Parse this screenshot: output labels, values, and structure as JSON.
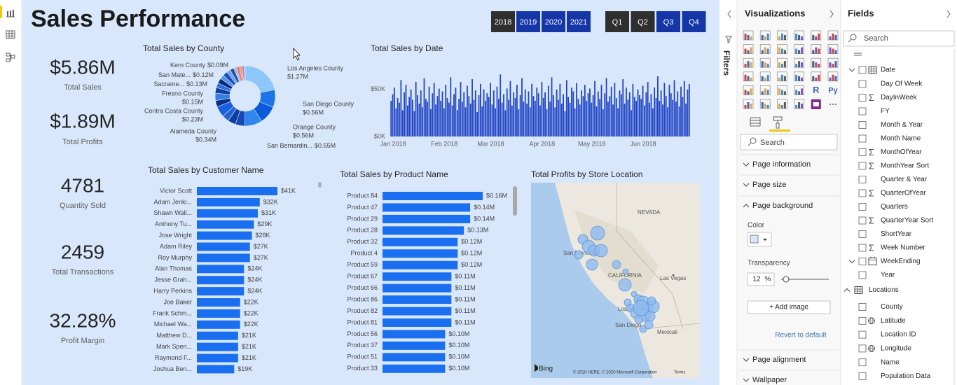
{
  "report": {
    "title": "Sales Performance",
    "years": [
      "2018",
      "2019",
      "2020",
      "2021"
    ],
    "quarters": [
      "Q1",
      "Q2",
      "Q3",
      "Q4"
    ],
    "cards": [
      {
        "value": "$5.86M",
        "label": "Total Sales"
      },
      {
        "value": "$1.89M",
        "label": "Total Profits"
      },
      {
        "value": "4781",
        "label": "Quantity Sold"
      },
      {
        "value": "2459",
        "label": "Total Transactions"
      },
      {
        "value": "32.28%",
        "label": "Profit Margin"
      }
    ],
    "county_chart": {
      "type": "donut",
      "title": "Total Sales by County",
      "categories": [
        "Los Angeles County",
        "San Diego County",
        "Orange County",
        "San Bernardin...",
        null,
        null,
        null,
        "Alameda County",
        null,
        "Contra Costa County",
        null,
        "Fresno County",
        null,
        "Sacrame...",
        null,
        "San Mate...",
        null,
        "Kern County",
        null,
        null,
        null,
        null
      ],
      "values": [
        1.27,
        0.56,
        0.56,
        0.55,
        0.3,
        0.25,
        0.22,
        0.34,
        0.2,
        0.23,
        0.18,
        0.15,
        0.16,
        0.13,
        0.15,
        0.12,
        0.12,
        0.09,
        0.1,
        0.08,
        0.06,
        0.04
      ],
      "value_labels": [
        "$1.27M",
        "$0.56M",
        "$0.56M",
        "$0.55M",
        null,
        null,
        null,
        "$0.34M",
        null,
        "$0.23M",
        null,
        "$0.15M",
        null,
        "$0.13M",
        null,
        "$0.12M",
        null,
        "$0.09M",
        null,
        null,
        null,
        null
      ],
      "colors": [
        "#8cc6fa",
        "#1d73e8",
        "#0d5ad8",
        "#2f86f0",
        "#1648b8",
        "#0e3c9e",
        "#2563d0",
        "#1a5fe0",
        "#0b2f86",
        "#3a7de6",
        "#123f9c",
        "#2a6fe4",
        "#0a2a78",
        "#4f8fef",
        "#1c4fb4",
        "#6aa4f2",
        "#274a9a",
        "#9fb9e8",
        "#e07a7a",
        "#f0a35a",
        "#c86ad0",
        "#7fd0f0"
      ]
    },
    "date_chart": {
      "type": "bar",
      "title": "Total Sales by Date",
      "color": "#2145c4",
      "values": [
        38,
        45,
        52,
        30,
        41,
        36,
        60,
        28,
        47,
        55,
        33,
        42,
        50,
        39,
        27,
        58,
        44,
        35,
        49,
        31,
        62,
        40,
        37,
        53,
        29,
        46,
        57,
        34,
        43,
        51,
        38,
        48,
        30,
        55,
        41,
        36,
        63,
        33,
        45,
        52,
        28,
        40,
        58,
        37,
        47,
        31,
        54,
        43,
        35,
        61,
        39,
        49,
        26,
        44,
        56,
        32,
        50,
        38,
        46,
        42,
        57,
        34,
        49,
        30,
        53,
        40,
        66,
        36,
        45,
        28,
        51,
        39,
        59,
        33,
        47,
        41,
        55,
        29,
        44,
        62,
        37,
        50,
        35,
        48,
        31,
        56,
        43,
        38,
        52,
        46,
        33,
        58,
        41,
        47,
        29,
        54,
        37,
        63,
        44,
        31,
        50,
        39,
        56,
        35,
        45,
        27,
        60,
        42,
        36,
        52,
        48,
        30,
        57,
        40,
        34,
        49,
        43,
        55,
        38,
        46,
        51,
        36,
        44,
        59,
        32,
        48,
        40,
        55,
        29,
        46,
        62,
        37,
        43,
        53,
        34,
        57,
        41,
        30,
        49,
        45,
        61,
        35,
        52,
        39,
        47,
        28,
        56,
        42,
        38,
        50,
        44,
        40,
        54,
        33,
        47,
        58,
        36,
        45,
        30,
        52,
        41,
        64,
        38,
        49,
        34,
        57,
        43,
        31,
        55,
        46,
        39,
        60,
        37,
        48,
        32,
        53,
        42,
        59,
        35,
        50,
        56
      ],
      "xlim": [
        0,
        181
      ],
      "xticks": [
        {
          "value": 0,
          "label": "Jan 2018"
        },
        {
          "value": 31,
          "label": "Feb 2018"
        },
        {
          "value": 59,
          "label": "Mar 2018"
        },
        {
          "value": 90,
          "label": "Apr 2018"
        },
        {
          "value": 120,
          "label": "May 2018"
        },
        {
          "value": 151,
          "label": "Jun 2018"
        }
      ],
      "ylim": [
        0,
        70
      ],
      "yticks": [
        {
          "value": 0,
          "label": "$0K"
        },
        {
          "value": 50,
          "label": "$50K"
        }
      ]
    },
    "customer_chart": {
      "type": "bar",
      "orientation": "horizontal",
      "title": "Total Sales by Customer Name",
      "color": "#1a6ff0",
      "categories": [
        "Victor Scott",
        "Adam Jenki...",
        "Shawn Wall...",
        "Anthony Tu...",
        "Jose Wright",
        "Adam Riley",
        "Roy Murphy",
        "Alan Thomas",
        "Jesse Grah...",
        "Harry Perkins",
        "Joe Baker",
        "Frank Schm...",
        "Michael Wa...",
        "Matthew D...",
        "Mark Spen...",
        "Raymond F...",
        "Joshua Ben..."
      ],
      "values": [
        41,
        32,
        31,
        29,
        28,
        27,
        27,
        24,
        24,
        24,
        22,
        22,
        22,
        21,
        21,
        21,
        19
      ],
      "value_labels": [
        "$41K",
        "$32K",
        "$31K",
        "$29K",
        "$28K",
        "$27K",
        "$27K",
        "$24K",
        "$24K",
        "$24K",
        "$22K",
        "$22K",
        "$22K",
        "$21K",
        "$21K",
        "$21K",
        "$19K"
      ]
    },
    "product_chart": {
      "type": "bar",
      "orientation": "horizontal",
      "title": "Total Sales by Product Name",
      "color": "#1a6ff0",
      "categories": [
        "Product 84",
        "Product 47",
        "Product 29",
        "Product 28",
        "Product 32",
        "Product 4",
        "Product 59",
        "Product 67",
        "Product 66",
        "Product 86",
        "Product 82",
        "Product 81",
        "Product 56",
        "Product 37",
        "Product 51",
        "Product 33"
      ],
      "values": [
        0.16,
        0.14,
        0.14,
        0.13,
        0.12,
        0.12,
        0.12,
        0.11,
        0.11,
        0.11,
        0.11,
        0.11,
        0.1,
        0.1,
        0.1,
        0.1
      ],
      "value_labels": [
        "$0.16M",
        "$0.14M",
        "$0.14M",
        "$0.13M",
        "$0.12M",
        "$0.12M",
        "$0.12M",
        "$0.11M",
        "$0.11M",
        "$0.11M",
        "$0.11M",
        "$0.11M",
        "$0.10M",
        "$0.10M",
        "$0.10M",
        "$0.10M"
      ]
    },
    "map": {
      "title": "Total Profits by Store Location",
      "labels": [
        "NEVADA",
        "San Francisco",
        "CALIFORNIA",
        "Las Vegas",
        "Los Angeles",
        "San Diego",
        "Mexicali"
      ],
      "logo": "Bing",
      "attribution": "© 2020 HERE, © 2020 Microsoft Corporation",
      "terms": "Terms"
    }
  },
  "filters_pane": {
    "title": "Filters"
  },
  "visualizations_pane": {
    "title": "Visualizations",
    "icon_labels": [
      "R",
      "Py"
    ],
    "search": "Search",
    "sections": [
      "Page information",
      "Page size",
      "Page background",
      "Page alignment",
      "Wallpaper"
    ],
    "color_label": "Color",
    "transparency_label": "Transparency",
    "transparency_value": "12",
    "transparency_unit": "%",
    "add_image": "+ Add image",
    "revert": "Revert to default"
  },
  "fields_pane": {
    "title": "Fields",
    "search": "Search",
    "tables": [
      {
        "name": "Date",
        "items": [
          {
            "name": "Day Of Week"
          },
          {
            "name": "DayInWeek",
            "kind": "sum"
          },
          {
            "name": "FY"
          },
          {
            "name": "Month & Year"
          },
          {
            "name": "Month Name"
          },
          {
            "name": "MonthOfYear",
            "kind": "sum"
          },
          {
            "name": "MonthYear Sort",
            "kind": "sum"
          },
          {
            "name": "Quarter & Year"
          },
          {
            "name": "QuarterOfYear",
            "kind": "sum"
          },
          {
            "name": "Quarters"
          },
          {
            "name": "QuarterYear Sort",
            "kind": "sum"
          },
          {
            "name": "ShortYear"
          },
          {
            "name": "Week Number",
            "kind": "sum"
          },
          {
            "name": "WeekEnding",
            "kind": "hierarchy",
            "items": [
              {
                "name": "Year"
              }
            ]
          }
        ]
      },
      {
        "name": "Locations",
        "items": [
          {
            "name": "County"
          },
          {
            "name": "Latitude",
            "kind": "geo"
          },
          {
            "name": "Location ID"
          },
          {
            "name": "Longitude",
            "kind": "geo"
          },
          {
            "name": "Name"
          },
          {
            "name": "Population Data"
          }
        ]
      }
    ]
  }
}
